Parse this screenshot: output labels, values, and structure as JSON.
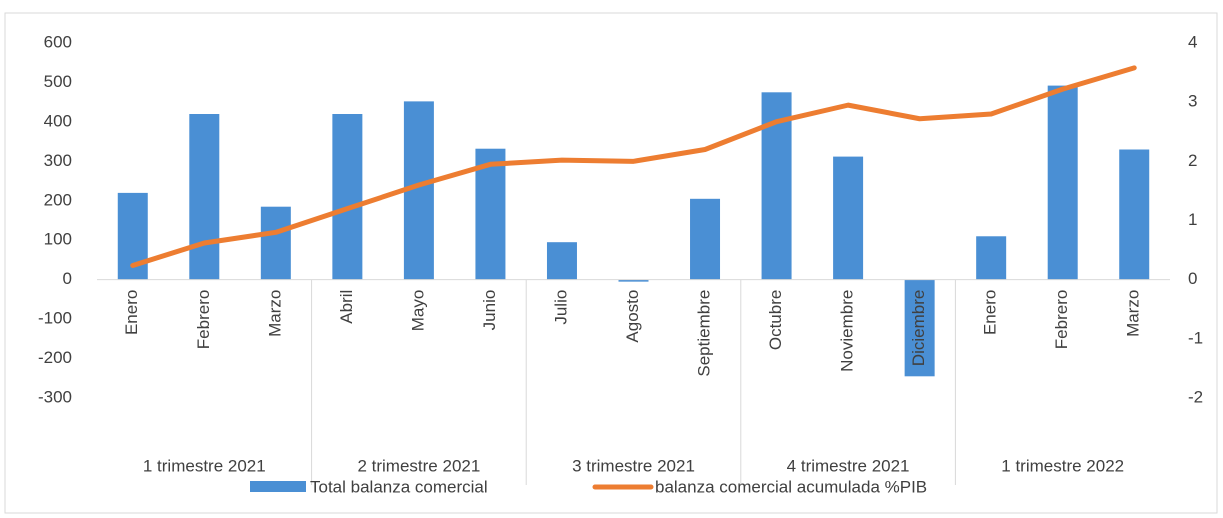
{
  "chart_data": {
    "type": "bar-line",
    "categories": [
      "Enero",
      "Febrero",
      "Marzo",
      "Abril",
      "Mayo",
      "Junio",
      "Julio",
      "Agosto",
      "Septiembre",
      "Octubre",
      "Noviembre",
      "Diciembre",
      "Enero",
      "Febrero",
      "Marzo"
    ],
    "groups": [
      "1 trimestre 2021",
      "2 trimestre 2021",
      "3 trimestre 2021",
      "4 trimestre 2021",
      "1 trimestre 2022"
    ],
    "series": [
      {
        "name": "Total balanza comercial",
        "type": "bar",
        "color": "#4a8fd4",
        "values": [
          220,
          420,
          185,
          420,
          452,
          332,
          95,
          -5,
          205,
          475,
          312,
          -245,
          110,
          492,
          330
        ]
      },
      {
        "name": "balanza comercial acumulada %PIB",
        "type": "line",
        "axis": "y2",
        "color": "#ed7d31",
        "values": [
          0.24,
          0.62,
          0.8,
          1.2,
          1.6,
          1.95,
          2.02,
          2.0,
          2.2,
          2.67,
          2.95,
          2.72,
          2.8,
          3.22,
          3.58
        ]
      }
    ],
    "ylim": [
      -300,
      600
    ],
    "yticks": [
      -300,
      -200,
      -100,
      0,
      100,
      200,
      300,
      400,
      500,
      600
    ],
    "y2lim": [
      -2,
      4
    ],
    "y2ticks": [
      -2,
      -1,
      0,
      1,
      2,
      3,
      4
    ],
    "legend": "bottom"
  }
}
